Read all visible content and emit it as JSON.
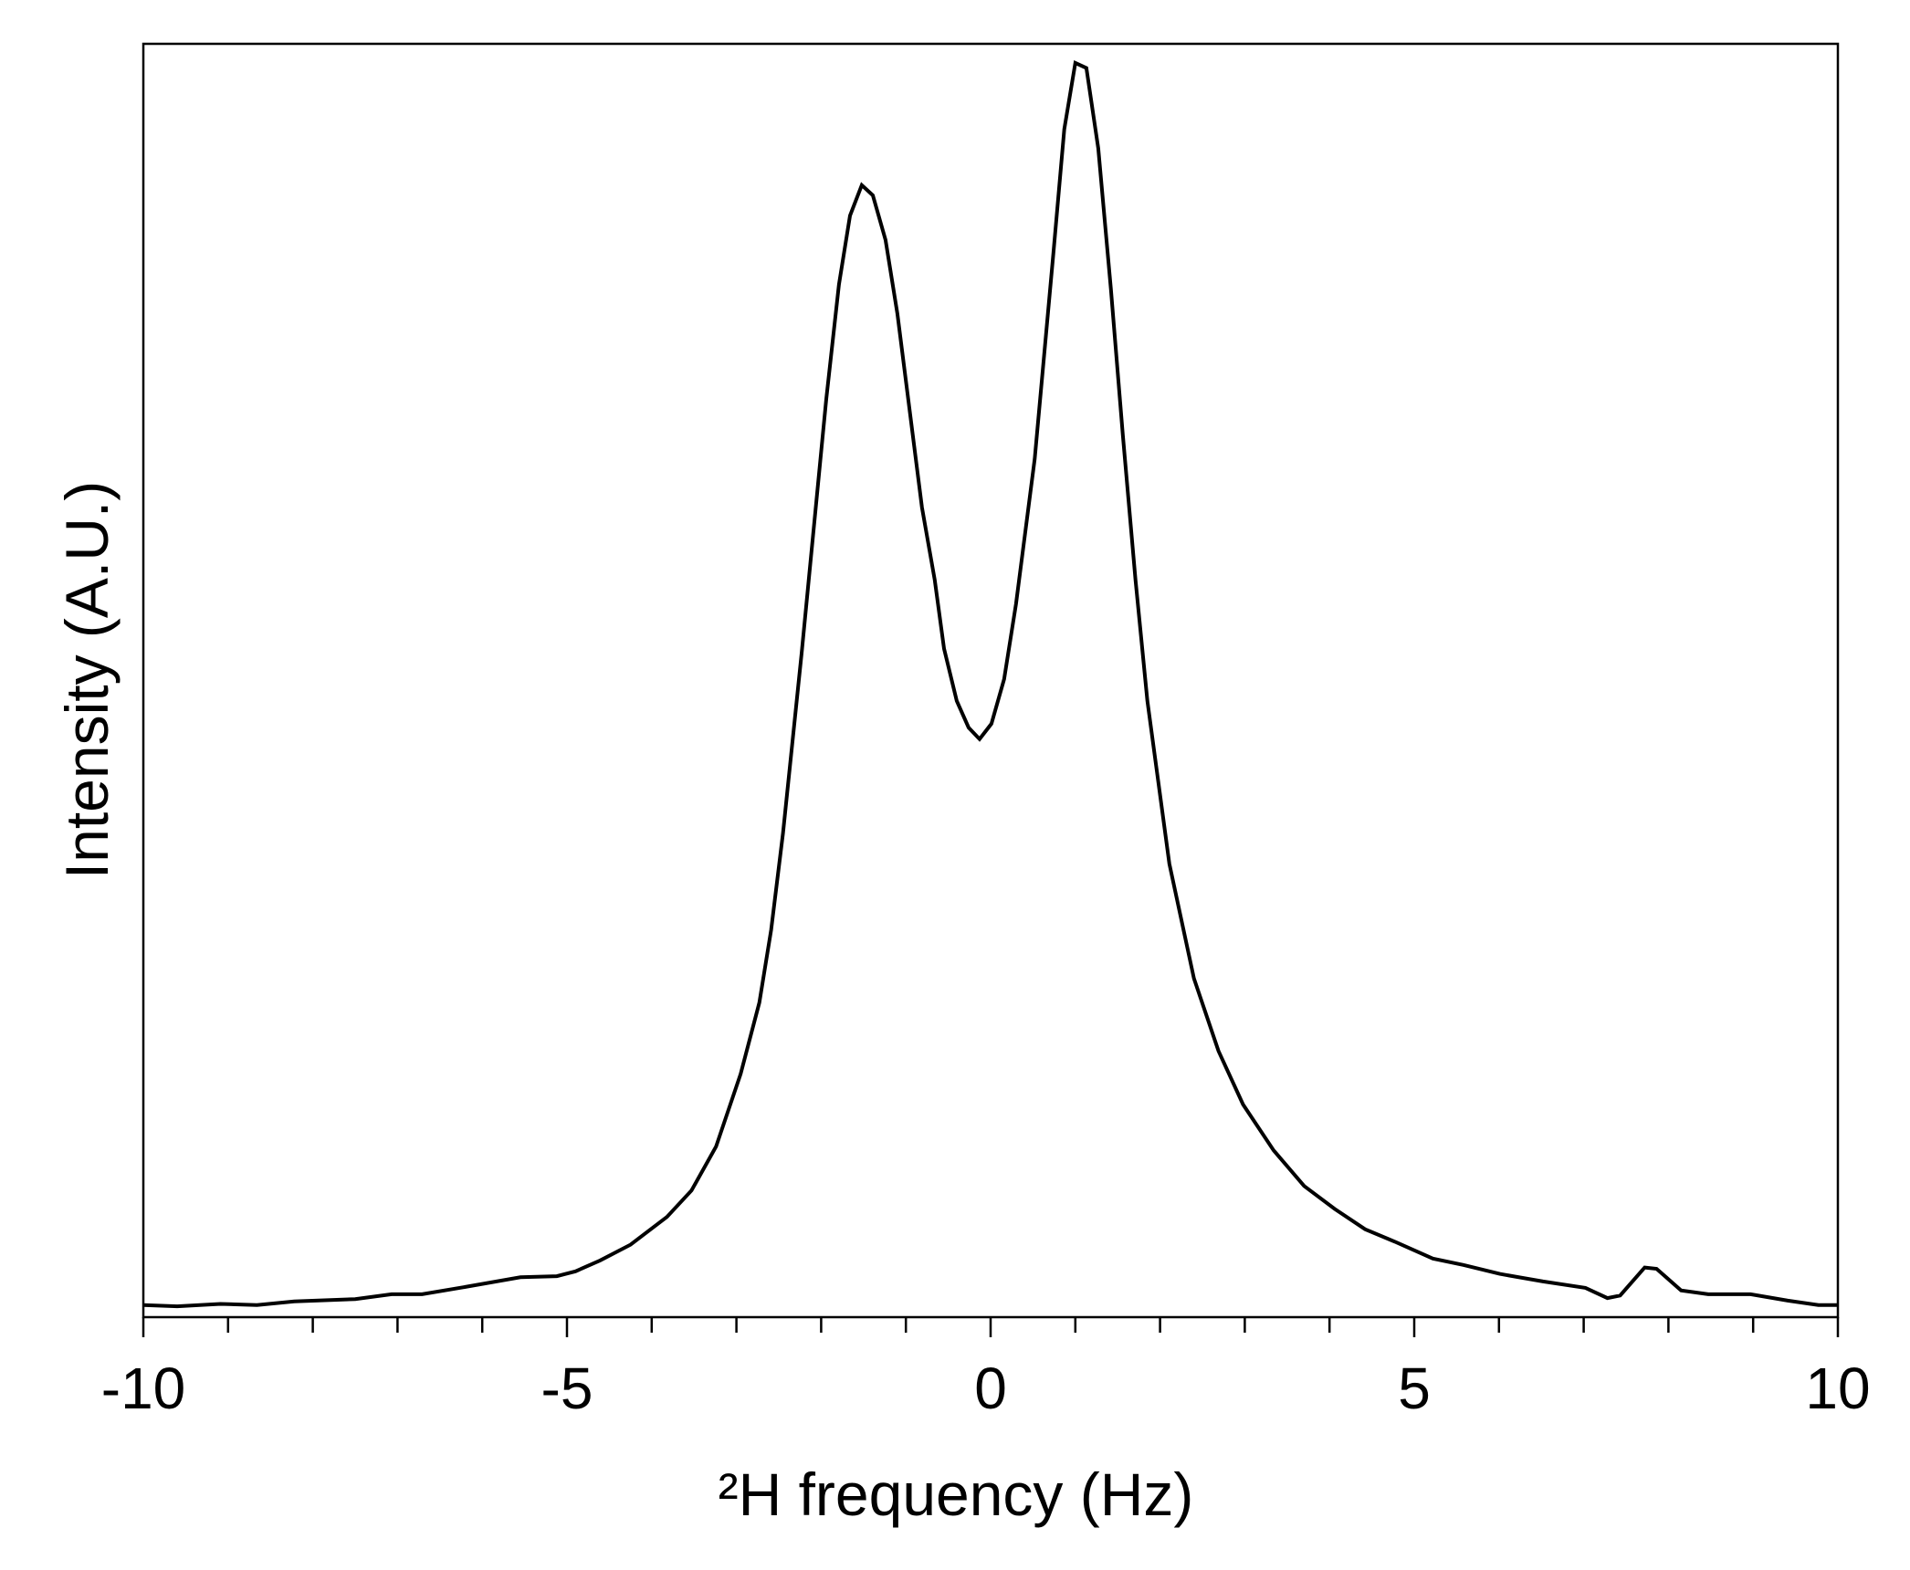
{
  "chart_data": {
    "type": "line",
    "x_label": "²H frequency (Hz)",
    "y_label": "Intensity (A.U.)",
    "xlim": [
      -10,
      10
    ],
    "ylim": [
      0,
      100
    ],
    "xticks": [
      -10,
      -5,
      0,
      5,
      10
    ],
    "xminorticks": [
      -9,
      -8,
      -7,
      -6,
      -4,
      -3,
      -2,
      -1,
      1,
      2,
      3,
      4,
      6,
      7,
      8,
      9
    ],
    "grid": false,
    "series": [
      {
        "color": "#000000",
        "x": [
          -10,
          -9.6,
          -9.09,
          -8.66,
          -8.22,
          -7.5,
          -7.07,
          -6.71,
          -6.2,
          -5.55,
          -5.12,
          -4.9,
          -4.61,
          -4.25,
          -3.82,
          -3.53,
          -3.24,
          -2.95,
          -2.73,
          -2.59,
          -2.45,
          -2.23,
          -1.94,
          -1.79,
          -1.66,
          -1.52,
          -1.39,
          -1.24,
          -1.1,
          -0.81,
          -0.66,
          -0.55,
          -0.4,
          -0.26,
          -0.13,
          0.01,
          0.16,
          0.3,
          0.52,
          0.74,
          0.87,
          1.0,
          1.13,
          1.27,
          1.42,
          1.56,
          1.71,
          1.85,
          2.11,
          2.4,
          2.69,
          2.98,
          3.34,
          3.7,
          4.06,
          4.42,
          4.78,
          5.22,
          5.58,
          6.01,
          6.52,
          7.02,
          7.28,
          7.43,
          7.72,
          7.86,
          8.15,
          8.47,
          8.97,
          9.41,
          9.77,
          10
        ],
        "values": [
          0.95,
          0.85,
          1.04,
          0.95,
          1.23,
          1.42,
          1.8,
          1.8,
          2.37,
          3.13,
          3.22,
          3.6,
          4.45,
          5.69,
          7.87,
          9.95,
          13.4,
          19.1,
          24.7,
          30.4,
          38.0,
          52.2,
          72.1,
          81.1,
          86.5,
          88.9,
          88.1,
          84.6,
          78.8,
          63.6,
          57.9,
          52.5,
          48.4,
          46.3,
          45.4,
          46.6,
          50.1,
          56.0,
          67.4,
          83.5,
          93.3,
          98.5,
          98.1,
          91.8,
          80.7,
          69.3,
          57.9,
          48.4,
          35.6,
          26.6,
          20.9,
          16.7,
          13.1,
          10.3,
          8.5,
          6.9,
          5.9,
          4.6,
          4.1,
          3.4,
          2.8,
          2.3,
          1.5,
          1.7,
          3.9,
          3.8,
          2.1,
          1.8,
          1.8,
          1.3,
          0.95,
          0.95
        ]
      }
    ]
  }
}
